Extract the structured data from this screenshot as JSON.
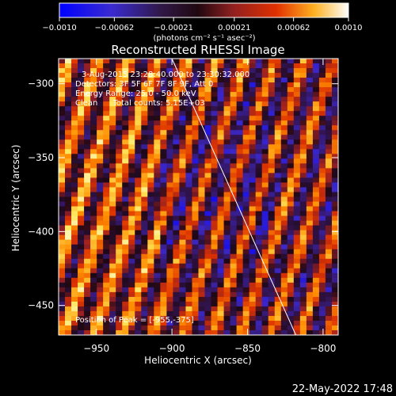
{
  "chart_data": {
    "type": "heatmap",
    "title": "Reconstructed RHESSI Image",
    "xlabel": "Heliocentric X (arcsec)",
    "ylabel": "Heliocentric Y (arcsec)",
    "xlim": [
      -975,
      -790
    ],
    "ylim": [
      -470,
      -283
    ],
    "x_ticks": [
      -950,
      -900,
      -850,
      -800
    ],
    "y_ticks": [
      -300,
      -350,
      -400,
      -450
    ],
    "x_tick_labels": [
      "−950",
      "−900",
      "−850",
      "−800"
    ],
    "y_tick_labels": [
      "−300",
      "−350",
      "−400",
      "−450"
    ],
    "colorbar": {
      "range": [
        -0.001,
        0.001
      ],
      "tick_values": [
        -0.001,
        -0.00062,
        -0.00021,
        0.00021,
        0.00062,
        0.001
      ],
      "tick_labels": [
        "−0.0010",
        "−0.00062",
        "−0.00021",
        "0.00021",
        "0.00062",
        "0.0010"
      ],
      "unit_label": "(photons cm⁻² s⁻¹ asec⁻²)",
      "colors": [
        "#0000ff",
        "#3020a0",
        "#402040",
        "#800020",
        "#d02000",
        "#ff8000",
        "#ffff80",
        "#ffffff"
      ]
    },
    "limb_line": {
      "x": [
        -900,
        -818
      ],
      "y": [
        -283,
        -470
      ]
    },
    "annotations": {
      "line1": "3-Aug-2015 23:28:40.000 to 23:30:32.000",
      "line2": "Detectors: 3F 5F 6F 7F 8F 9F, Att 0",
      "line3": "Energy Range: 25.0 - 50.0 keV",
      "line4": "Clean      Total counts: 5.15E+03",
      "peak": "Position of Peak = [-955,-375]"
    },
    "peak_position": [
      -955,
      -375
    ],
    "grid": false
  },
  "footer": {
    "date": "22-May-2022 17:48"
  }
}
